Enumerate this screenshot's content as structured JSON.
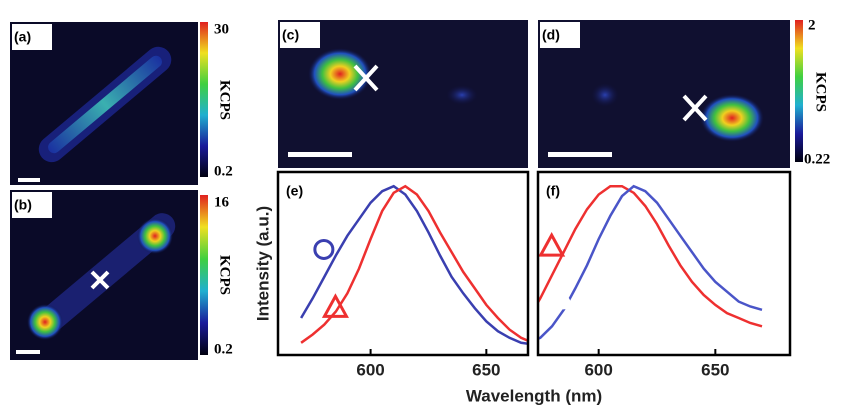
{
  "panels": [
    {
      "label": "(a)"
    },
    {
      "label": "(b)"
    },
    {
      "label": "(c)"
    },
    {
      "label": "(d)"
    }
  ],
  "colorbars": [
    {
      "max": "30",
      "min": "0.2",
      "unit": "KCPS"
    },
    {
      "max": "16",
      "min": "0.2",
      "unit": "KCPS"
    },
    {
      "max": "2",
      "min": "0.22",
      "unit": "KCPS"
    }
  ],
  "x_label": "Wavelength (nm)",
  "chart_data": [
    {
      "type": "line",
      "label": "(e)",
      "y_label": "Intensity (a.u.)",
      "x": [
        570,
        575,
        580,
        585,
        590,
        595,
        600,
        605,
        610,
        615,
        620,
        625,
        630,
        635,
        640,
        645,
        650,
        655,
        660,
        665,
        670
      ],
      "xlim": [
        560,
        668
      ],
      "xticks": [
        600,
        650
      ],
      "ylim": [
        0,
        1.05
      ],
      "series": [
        {
          "color": "#3a3fb0",
          "marker": "circle-open",
          "values": [
            0.2,
            0.32,
            0.45,
            0.58,
            0.7,
            0.8,
            0.9,
            0.97,
            1.0,
            0.95,
            0.85,
            0.72,
            0.58,
            0.45,
            0.35,
            0.26,
            0.18,
            0.12,
            0.08,
            0.05,
            0.04
          ]
        },
        {
          "color": "#ee3030",
          "marker": "triangle-open",
          "values": [
            0.05,
            0.1,
            0.16,
            0.24,
            0.35,
            0.5,
            0.68,
            0.85,
            0.96,
            1.0,
            0.95,
            0.85,
            0.72,
            0.6,
            0.48,
            0.38,
            0.28,
            0.2,
            0.13,
            0.08,
            0.05
          ]
        }
      ]
    },
    {
      "type": "line",
      "label": "(f)",
      "x": [
        570,
        575,
        580,
        585,
        590,
        595,
        600,
        605,
        610,
        615,
        620,
        625,
        630,
        635,
        640,
        645,
        650,
        655,
        660,
        665,
        670
      ],
      "xlim": [
        574,
        682
      ],
      "xticks": [
        600,
        650
      ],
      "ylim": [
        0,
        1.05
      ],
      "series": [
        {
          "color": "#ee3030",
          "marker": "triangle-open",
          "values": [
            0.2,
            0.32,
            0.46,
            0.6,
            0.74,
            0.86,
            0.95,
            1.0,
            1.0,
            0.96,
            0.88,
            0.77,
            0.64,
            0.52,
            0.42,
            0.34,
            0.28,
            0.23,
            0.2,
            0.17,
            0.15
          ]
        },
        {
          "color": "#4a55c8",
          "marker": "circle-filled",
          "values": [
            0.05,
            0.08,
            0.15,
            0.25,
            0.38,
            0.52,
            0.68,
            0.82,
            0.94,
            1.0,
            0.97,
            0.9,
            0.8,
            0.7,
            0.6,
            0.5,
            0.42,
            0.36,
            0.3,
            0.27,
            0.25
          ]
        }
      ]
    }
  ]
}
